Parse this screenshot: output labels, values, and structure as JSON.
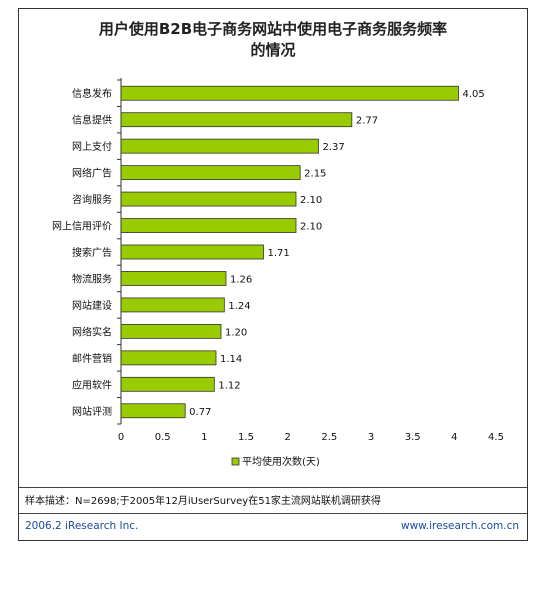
{
  "title_lines": [
    "用户使用B2B电子商务网站中使用电子商务服务频率",
    "的情况"
  ],
  "note": "样本描述：N=2698;于2005年12月iUserSurvey在51家主流网站联机调研获得",
  "footer": {
    "copyright": "2006.2 iResearch Inc.",
    "website": "www.iresearch.com.cn"
  },
  "chart_data": {
    "type": "bar",
    "orientation": "horizontal",
    "categories": [
      "信息发布",
      "信息提供",
      "网上支付",
      "网络广告",
      "咨询服务",
      "网上信用评价",
      "搜索广告",
      "物流服务",
      "网站建设",
      "网络实名",
      "邮件营销",
      "应用软件",
      "网站评测"
    ],
    "series": [
      {
        "name": "平均使用次数(天)",
        "values": [
          4.05,
          2.77,
          2.37,
          2.15,
          2.1,
          2.1,
          1.71,
          1.26,
          1.24,
          1.2,
          1.14,
          1.12,
          0.77
        ]
      }
    ],
    "value_labels": [
      "4.05",
      "2.77",
      "2.37",
      "2.15",
      "2.10",
      "2.10",
      "1.71",
      "1.26",
      "1.24",
      "1.20",
      "1.14",
      "1.12",
      "0.77"
    ],
    "x_ticks": [
      "0",
      "0.5",
      "1",
      "1.5",
      "2",
      "2.5",
      "3",
      "3.5",
      "4",
      "4.5"
    ],
    "xlim": [
      0,
      4.5
    ],
    "bar_color": "#99cc00",
    "legend_position": "bottom"
  }
}
